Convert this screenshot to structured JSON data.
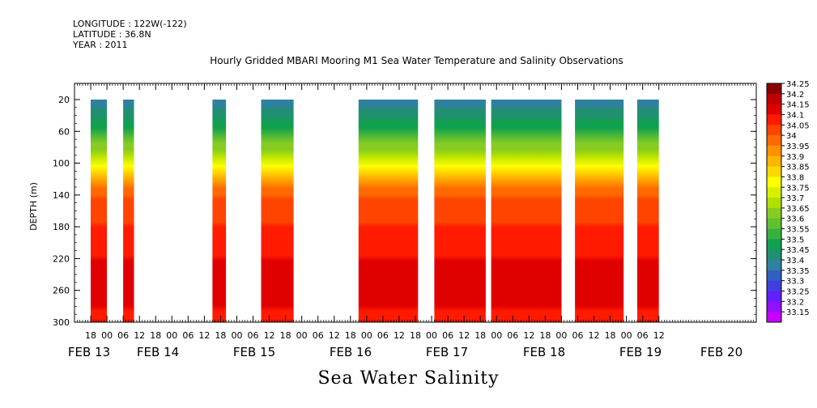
{
  "header": {
    "longitude": "LONGITUDE : 122W(-122)",
    "latitude": "LATITUDE : 36.8N",
    "year": "YEAR : 2011"
  },
  "chart_data": {
    "type": "heatmap",
    "title": "Hourly Gridded MBARI Mooring M1 Sea Water Temperature and Salinity Observations",
    "bottom_title": "Sea Water Salinity",
    "ylabel": "DEPTH (m)",
    "xlabel": "",
    "y_axis": {
      "ylim": [
        300,
        0
      ],
      "ticks": [
        20,
        60,
        100,
        140,
        180,
        220,
        260,
        300
      ],
      "inverted": true
    },
    "x_axis": {
      "hour_ticks": [
        "18",
        "00",
        "06",
        "12",
        "18",
        "00",
        "06",
        "12",
        "18",
        "00",
        "06",
        "12",
        "18",
        "00",
        "06",
        "12",
        "18",
        "00",
        "06",
        "12",
        "18",
        "00",
        "06",
        "12",
        "18",
        "00",
        "06",
        "12",
        "18",
        "00",
        "06",
        "12",
        "18",
        "00",
        "06",
        "12"
      ],
      "day_labels": [
        "FEB 13",
        "FEB 14",
        "FEB 15",
        "FEB 16",
        "FEB 17",
        "FEB 18",
        "FEB 19",
        "FEB 20"
      ]
    },
    "colorbar": {
      "levels": [
        "34.25",
        "34.2",
        "34.15",
        "34.1",
        "34.05",
        "34",
        "33.95",
        "33.9",
        "33.85",
        "33.8",
        "33.75",
        "33.7",
        "33.65",
        "33.6",
        "33.55",
        "33.5",
        "33.45",
        "33.4",
        "33.35",
        "33.3",
        "33.25",
        "33.2",
        "33.15"
      ],
      "colors": [
        "#8b0000",
        "#c00000",
        "#e00000",
        "#ff1a00",
        "#ff4400",
        "#ff6a00",
        "#ff9000",
        "#ffb400",
        "#ffd800",
        "#ffff00",
        "#d8f000",
        "#b0e000",
        "#88cc22",
        "#60c030",
        "#38b040",
        "#10a050",
        "#209070",
        "#3080a0",
        "#3060c0",
        "#4040e0",
        "#6020ff",
        "#9010ff",
        "#c800ff"
      ]
    },
    "data_segments_hours": [
      [
        36,
        42
      ],
      [
        48,
        52
      ],
      [
        81,
        86
      ],
      [
        99,
        111
      ],
      [
        135,
        157
      ],
      [
        163,
        182
      ],
      [
        184,
        210
      ],
      [
        215,
        233
      ],
      [
        238,
        246
      ]
    ],
    "salinity_profile": {
      "depth": [
        20,
        60,
        100,
        140,
        180,
        220,
        260,
        300
      ],
      "salinity": [
        33.4,
        33.55,
        33.8,
        34.05,
        34.1,
        34.15,
        34.2,
        34.1
      ]
    }
  }
}
